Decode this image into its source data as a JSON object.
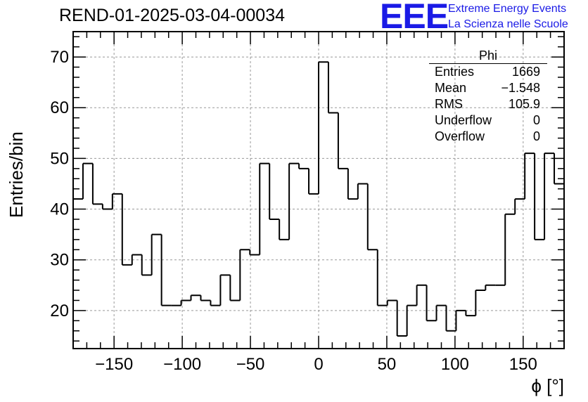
{
  "header": {
    "run_title": "REND-01-2025-03-04-00034",
    "logo_text": "EEE",
    "logo_line1": "Extreme Energy Events",
    "logo_line2": "La Scienza nelle Scuole"
  },
  "stats_box": {
    "title": "Phi",
    "rows": [
      {
        "label": "Entries",
        "value": "1669"
      },
      {
        "label": "Mean",
        "value": "−1.548"
      },
      {
        "label": "RMS",
        "value": "105.9"
      },
      {
        "label": "Underflow",
        "value": "0"
      },
      {
        "label": "Overflow",
        "value": "0"
      }
    ]
  },
  "colors": {
    "line": "#000000",
    "grid": "#999999",
    "logo": "#1a1ae6"
  },
  "chart_data": {
    "type": "histogram",
    "title": "REND-01-2025-03-04-00034",
    "xlabel": "ϕ [°]",
    "ylabel": "Entries/bin",
    "xlim": [
      -180,
      180
    ],
    "ylim": [
      12.5,
      75
    ],
    "xticks": [
      -150,
      -100,
      -50,
      0,
      50,
      100,
      150
    ],
    "xtick_labels": [
      "−150",
      "−100",
      "−50",
      "0",
      "50",
      "100",
      "150"
    ],
    "yticks": [
      20,
      30,
      40,
      50,
      60,
      70
    ],
    "ytick_labels": [
      "20",
      "30",
      "40",
      "50",
      "60",
      "70"
    ],
    "grid": true,
    "bin_width": 7.2,
    "bin_edges_start": -180,
    "values": [
      42,
      49,
      41,
      40,
      43,
      29,
      31,
      27,
      35,
      21,
      21,
      22,
      23,
      22,
      21,
      27,
      22,
      32,
      31,
      49,
      38,
      34,
      49,
      48,
      43,
      69,
      59,
      48,
      42,
      45,
      32,
      21,
      22,
      15,
      21,
      25,
      18,
      21,
      16,
      20,
      19,
      24,
      25,
      25,
      39,
      42,
      51,
      34,
      51,
      45
    ]
  }
}
